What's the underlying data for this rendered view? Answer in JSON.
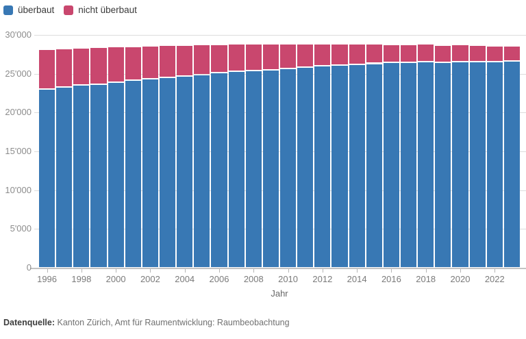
{
  "legend": {
    "items": [
      {
        "label": "überbaut",
        "color": "#3878b4"
      },
      {
        "label": "nicht überbaut",
        "color": "#c9476e"
      }
    ]
  },
  "chart_data": {
    "type": "bar",
    "stacked": true,
    "title": "",
    "xlabel": "Jahr",
    "ylabel": "",
    "ylim": [
      0,
      30000
    ],
    "ytick_step": 5000,
    "ytick_labels": [
      "0",
      "5'000",
      "10'000",
      "15'000",
      "20'000",
      "25'000",
      "30'000"
    ],
    "grid": true,
    "legend_position": "top-left",
    "categories": [
      1996,
      1997,
      1998,
      1999,
      2000,
      2001,
      2002,
      2003,
      2004,
      2005,
      2006,
      2007,
      2008,
      2009,
      2010,
      2011,
      2012,
      2013,
      2014,
      2015,
      2016,
      2017,
      2018,
      2019,
      2020,
      2021,
      2022,
      2023
    ],
    "xtick_labels": [
      "1996",
      "1998",
      "2000",
      "2002",
      "2004",
      "2006",
      "2008",
      "2010",
      "2012",
      "2014",
      "2016",
      "2018",
      "2020",
      "2022"
    ],
    "series": [
      {
        "name": "überbaut",
        "color": "#3878b4",
        "values": [
          22950,
          23200,
          23450,
          23600,
          23800,
          24050,
          24250,
          24400,
          24600,
          24800,
          25050,
          25250,
          25350,
          25450,
          25550,
          25750,
          25900,
          26000,
          26150,
          26250,
          26350,
          26400,
          26450,
          26400,
          26450,
          26450,
          26500,
          26550
        ]
      },
      {
        "name": "nicht überbaut",
        "color": "#c9476e",
        "values": [
          5100,
          4950,
          4800,
          4700,
          4600,
          4400,
          4250,
          4150,
          4000,
          3850,
          3650,
          3500,
          3400,
          3300,
          3250,
          3050,
          2850,
          2750,
          2600,
          2500,
          2350,
          2300,
          2300,
          2200,
          2250,
          2150,
          2000,
          1950
        ]
      }
    ]
  },
  "footer": {
    "label": "Datenquelle:",
    "text": "Kanton Zürich, Amt für Raumentwicklung: Raumbeobachtung"
  }
}
